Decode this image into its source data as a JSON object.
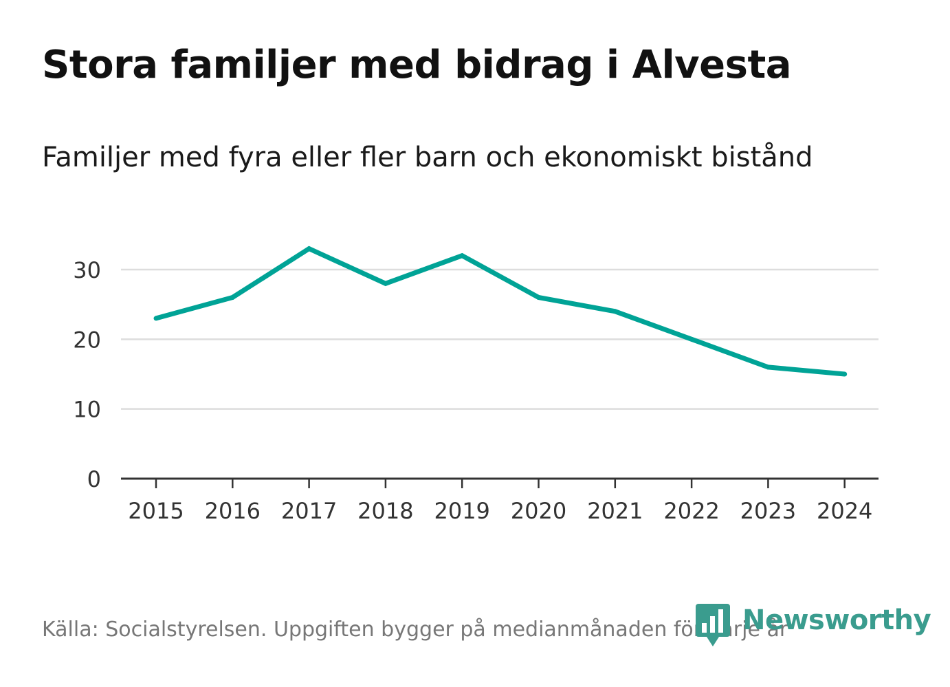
{
  "chart_data": {
    "type": "line",
    "title": "Stora familjer med bidrag i Alvesta",
    "subtitle": "Familjer med fyra eller fler barn och ekonomiskt bistånd",
    "xlabel": "",
    "ylabel": "",
    "x": [
      "2015",
      "2016",
      "2017",
      "2018",
      "2019",
      "2020",
      "2021",
      "2022",
      "2023",
      "2024"
    ],
    "series": [
      {
        "name": "Familjer med fyra eller fler barn",
        "values": [
          23,
          26,
          33,
          28,
          32,
          26,
          24,
          20,
          16,
          15
        ],
        "color": "#00a396"
      }
    ],
    "ylim": [
      0,
      30
    ],
    "yticks": [
      0,
      10,
      20,
      30
    ],
    "grid": true,
    "legend": "none"
  },
  "footer": {
    "source": "Källa: Socialstyrelsen. Uppgiften bygger på medianmånaden för varje år",
    "brand": "Newsworthy"
  },
  "colors": {
    "line": "#00a396",
    "grid": "#dddddd",
    "axis": "#333333",
    "brand": "#3a9c8e"
  }
}
